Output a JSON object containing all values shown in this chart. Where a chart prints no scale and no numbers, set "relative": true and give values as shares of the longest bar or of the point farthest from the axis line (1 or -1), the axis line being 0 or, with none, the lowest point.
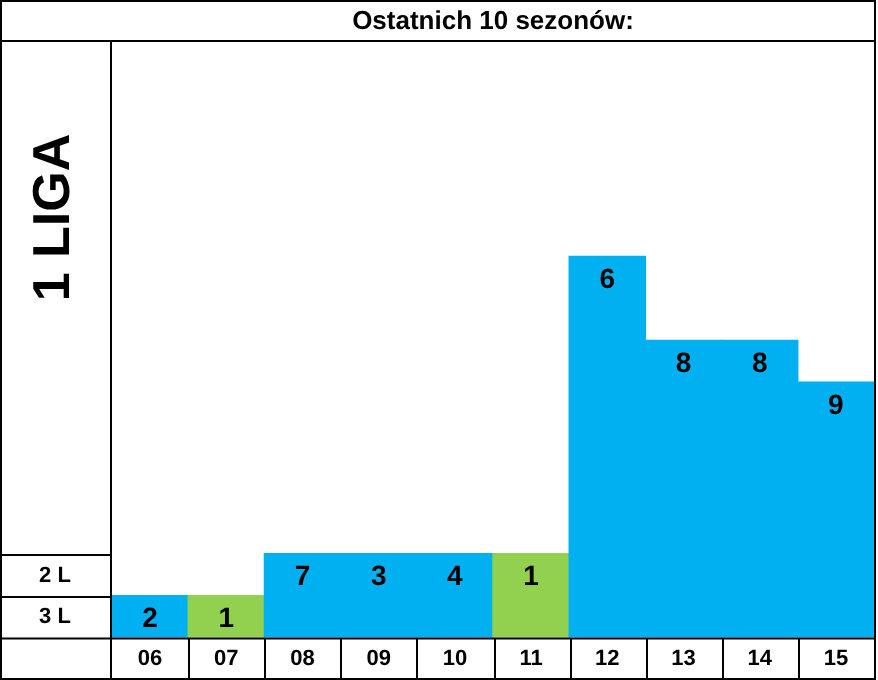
{
  "chart_data": {
    "type": "bar",
    "title": "Ostatnich 10 sezonów:",
    "relative": true,
    "categories": [
      "06",
      "07",
      "08",
      "09",
      "10",
      "11",
      "12",
      "13",
      "14",
      "15"
    ],
    "values": [
      0.11,
      0.11,
      0.22,
      0.22,
      0.22,
      0.22,
      1,
      0.78,
      0.78,
      0.67
    ],
    "colors": [
      "#00b0f0",
      "#92d050",
      "#00b0f0",
      "#00b0f0",
      "#00b0f0",
      "#92d050",
      "#00b0f0",
      "#00b0f0",
      "#00b0f0",
      "#00b0f0"
    ],
    "annotations": [
      "1 LIGA",
      "2 L",
      "3 L",
      {
        "text": "2",
        "x": "06",
        "y": 0.11
      },
      {
        "text": "1",
        "x": "07",
        "y": 0.11
      },
      {
        "text": "7",
        "x": "08",
        "y": 0.22
      },
      {
        "text": "3",
        "x": "09",
        "y": 0.22
      },
      {
        "text": "4",
        "x": "10",
        "y": 0.22
      },
      {
        "text": "1",
        "x": "11",
        "y": 0.22
      },
      {
        "text": "6",
        "x": "12",
        "y": 1
      },
      {
        "text": "8",
        "x": "13",
        "y": 0.78
      },
      {
        "text": "8",
        "x": "14",
        "y": 0.78
      },
      {
        "text": "9",
        "x": "15",
        "y": 0.67
      }
    ],
    "grid": false,
    "legend": false
  }
}
